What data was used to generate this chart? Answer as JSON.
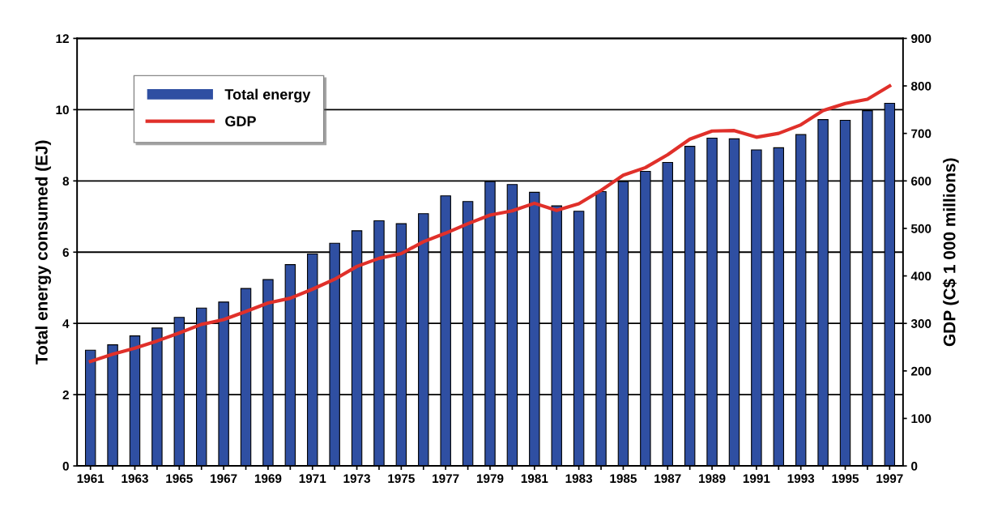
{
  "chart_data": {
    "type": "bar",
    "ylabel": "Total energy consumed (EJ)",
    "y2label": "GDP (C$ 1 000 millions)",
    "categories": [
      "1961",
      null,
      "1963",
      null,
      "1965",
      null,
      "1967",
      null,
      "1969",
      null,
      "1971",
      null,
      "1973",
      null,
      "1975",
      null,
      "1977",
      null,
      "1979",
      null,
      "1981",
      null,
      "1983",
      null,
      "1985",
      null,
      "1987",
      null,
      "1989",
      null,
      "1991",
      null,
      "1993",
      null,
      "1995",
      null,
      "1997"
    ],
    "series": [
      {
        "name": "Total energy",
        "color": "#2f4fa2",
        "values": [
          3.25,
          3.4,
          3.65,
          3.87,
          4.17,
          4.43,
          4.6,
          4.98,
          5.23,
          5.65,
          5.95,
          6.25,
          6.6,
          6.88,
          6.8,
          7.08,
          7.58,
          7.42,
          7.98,
          7.9,
          7.68,
          7.3,
          7.15,
          7.7,
          7.98,
          8.27,
          8.52,
          8.97,
          9.2,
          9.18,
          8.87,
          8.93,
          9.3,
          9.72,
          9.7,
          9.97,
          10.18
        ]
      },
      {
        "name": "GDP",
        "type": "line",
        "axis": "y2",
        "color": "#e0302a",
        "values": [
          220,
          235,
          248,
          263,
          280,
          298,
          308,
          325,
          343,
          353,
          372,
          393,
          420,
          437,
          447,
          472,
          490,
          510,
          528,
          537,
          553,
          538,
          552,
          580,
          612,
          628,
          655,
          688,
          705,
          706,
          692,
          700,
          718,
          748,
          763,
          772,
          800
        ]
      }
    ],
    "ylim": [
      0,
      12
    ],
    "yticks": [
      0,
      2,
      4,
      6,
      8,
      10,
      12
    ],
    "y2lim": [
      0,
      900
    ],
    "y2ticks": [
      0,
      100,
      200,
      300,
      400,
      500,
      600,
      700,
      800,
      900
    ],
    "grid": "y",
    "legend": "top left",
    "marker": "none",
    "line_style": "solid"
  }
}
